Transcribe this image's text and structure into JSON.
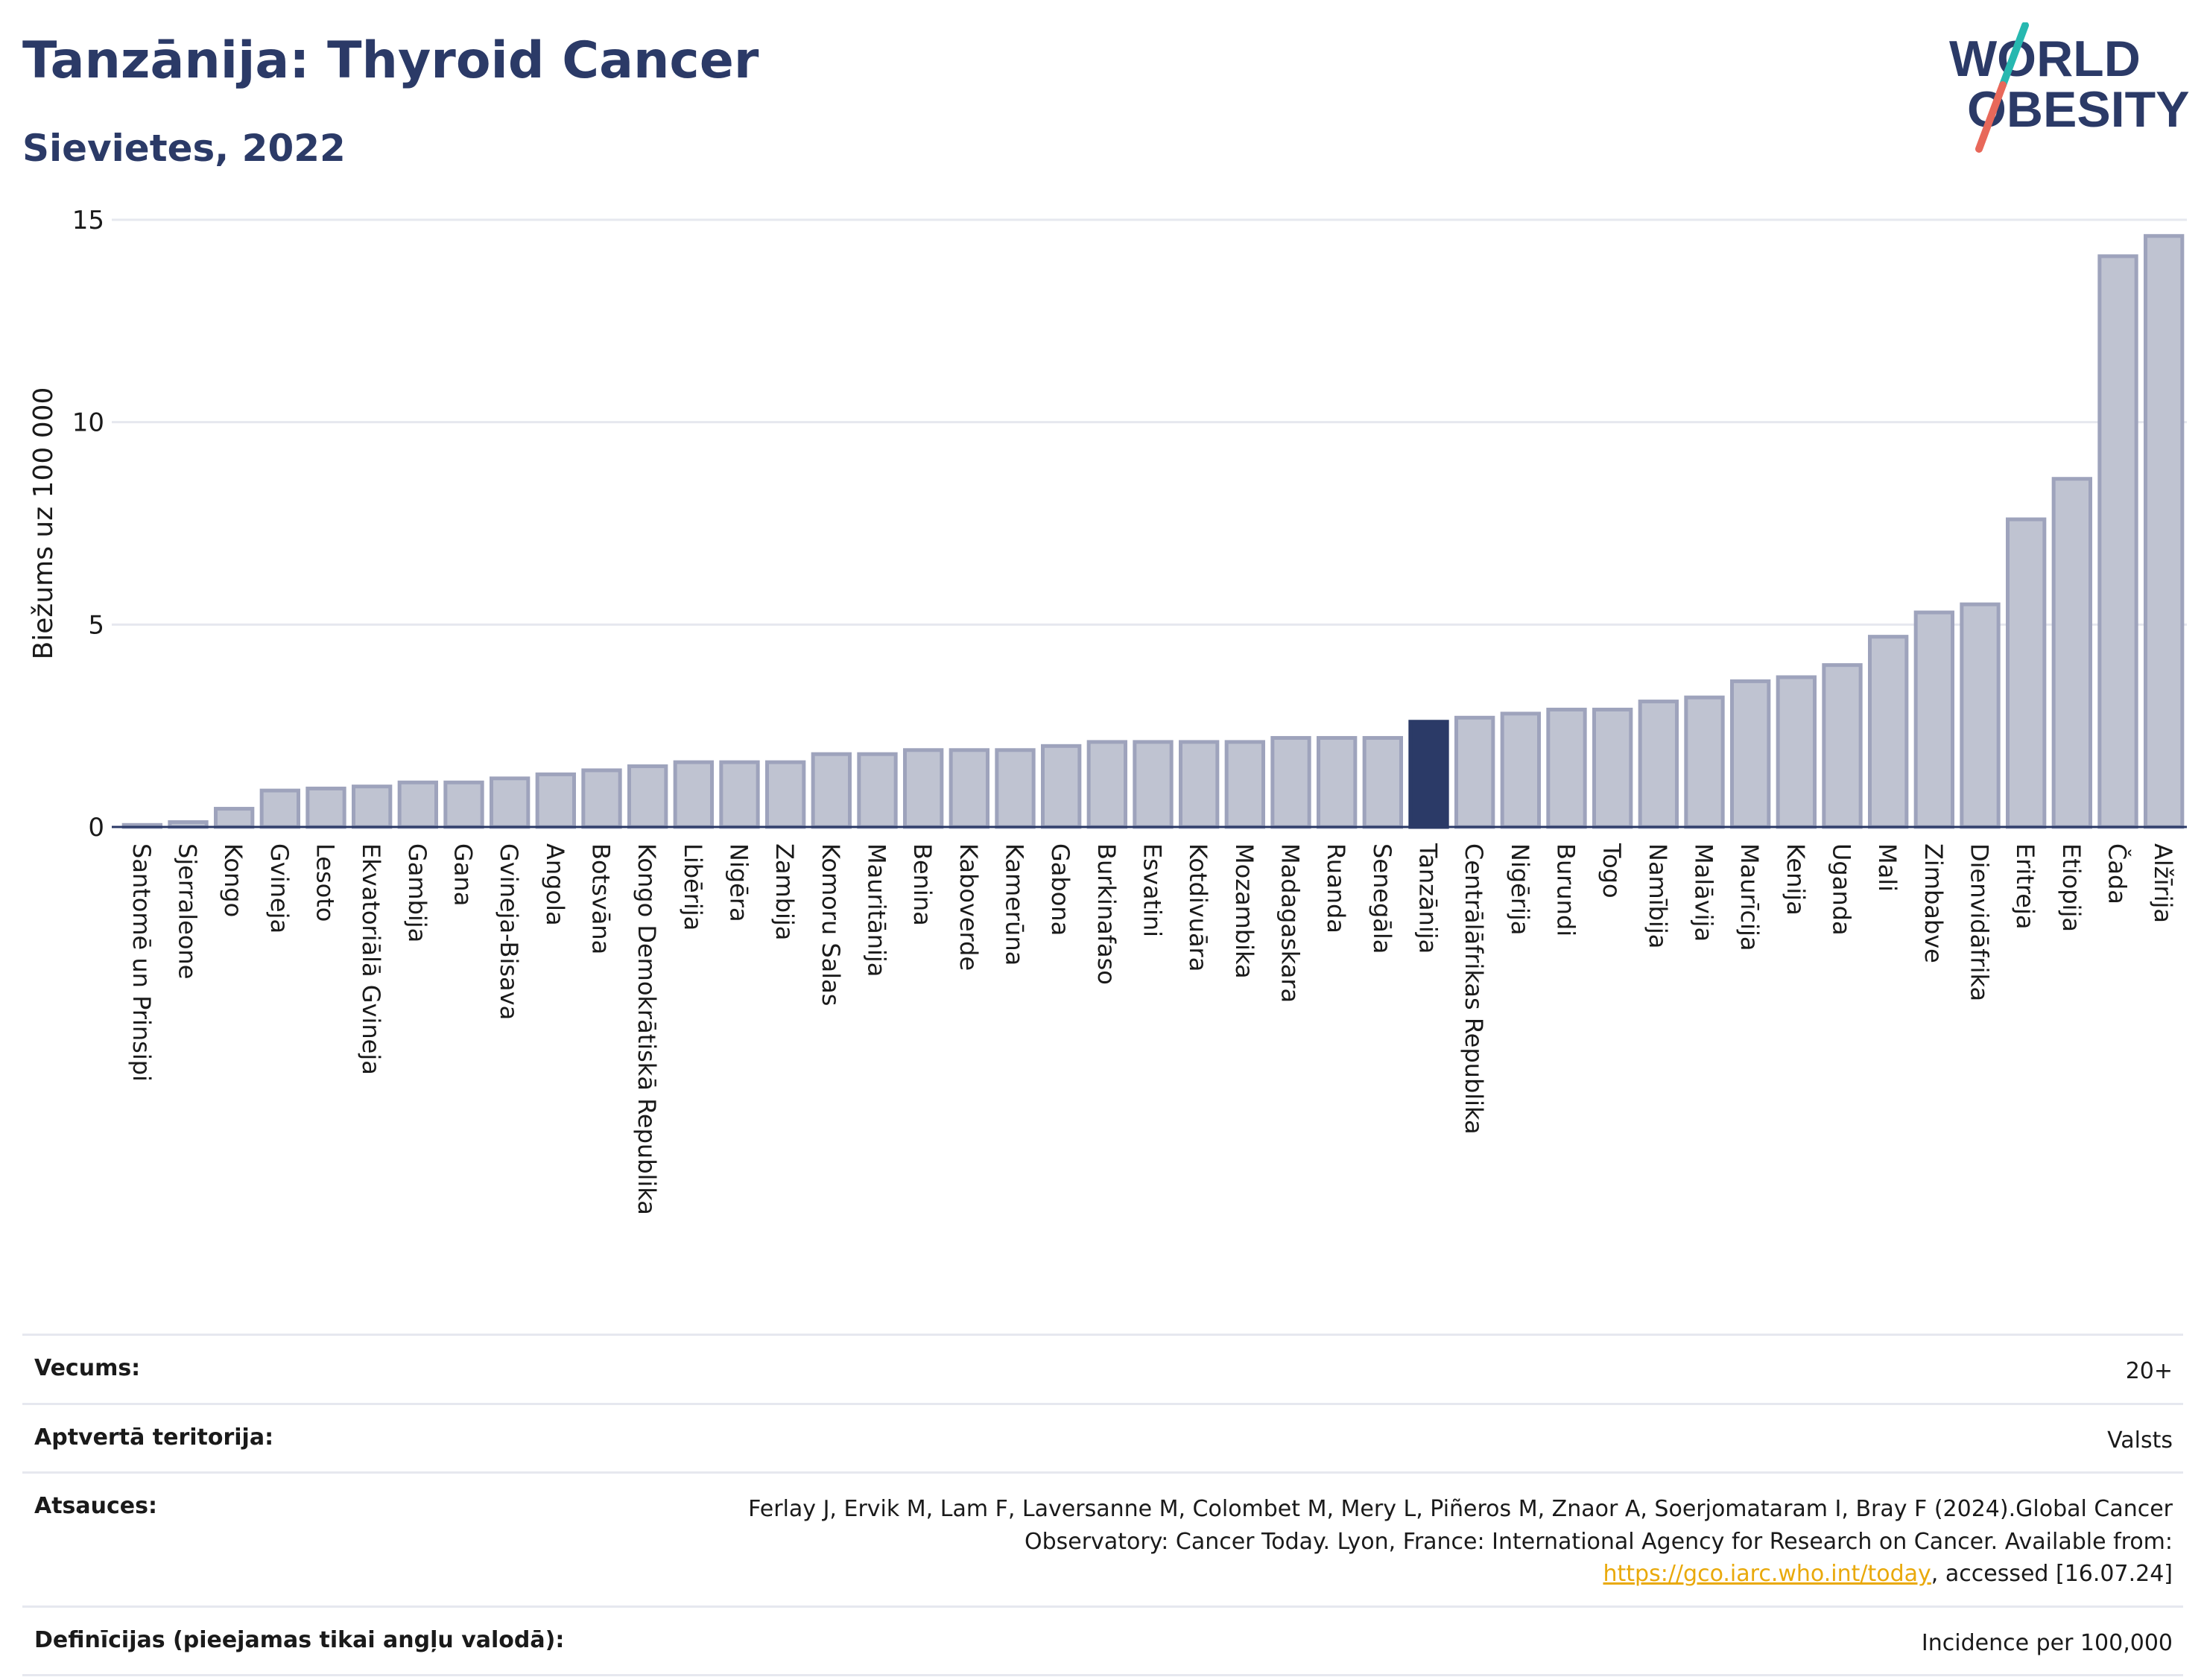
{
  "title": "Tanzānija: Thyroid Cancer",
  "subtitle": "Sievietes, 2022",
  "logo": {
    "line1": "WORLD",
    "line2": "OBESITY"
  },
  "info": {
    "age_label": "Vecums:",
    "age_value": "20+",
    "coverage_label": "Aptvertā teritorija:",
    "coverage_value": "Valsts",
    "refs_label": "Atsauces:",
    "refs_text_1": "Ferlay J, Ervik M, Lam F, Laversanne M, Colombet M, Mery L, Piñeros M, Znaor A, Soerjomataram I, Bray F (2024).Global Cancer Observatory: Cancer Today. Lyon, France: International Agency for Research on Cancer. Available from: ",
    "refs_link": "https://gco.iarc.who.int/today",
    "refs_text_2": ", accessed [16.07.24]",
    "defs_label": "Definīcijas (pieejamas tikai angļu valodā):",
    "defs_value": "Incidence per 100,000"
  },
  "chart_data": {
    "type": "bar",
    "ylabel": "Biežums uz 100 000",
    "ylim": [
      0,
      15
    ],
    "yticks": [
      0,
      5,
      10,
      15
    ],
    "grid": true,
    "highlight": "Tanzānija",
    "colors": {
      "bar": "#bfc3d1",
      "bar_edge": "#9ea3bc",
      "highlight": "#2b3a67",
      "grid": "#e6e8ef",
      "axis": "#2b3a67"
    },
    "categories": [
      "Santomē un Prinsipi",
      "Sjerraleone",
      "Kongo",
      "Gvineja",
      "Lesoto",
      "Ekvatoriālā Gvineja",
      "Gambija",
      "Gana",
      "Gvineja-Bisava",
      "Angola",
      "Botsvāna",
      "Kongo Demokrātiskā Republika",
      "Libērija",
      "Nigēra",
      "Zambija",
      "Komoru Salas",
      "Mauritānija",
      "Benina",
      "Kaboverde",
      "Kamerūna",
      "Gabona",
      "Burkinafaso",
      "Esvatini",
      "Kotdivuāra",
      "Mozambika",
      "Madagaskara",
      "Ruanda",
      "Senegāla",
      "Tanzānija",
      "Centrālāfrikas Republika",
      "Nigērija",
      "Burundi",
      "Togo",
      "Namībija",
      "Malāvija",
      "Maurīcija",
      "Kenija",
      "Uganda",
      "Mali",
      "Zimbabve",
      "Dienvidāfrika",
      "Eritreja",
      "Etiopija",
      "Čada",
      "Alžīrija"
    ],
    "values": [
      0.05,
      0.12,
      0.45,
      0.9,
      0.95,
      1.0,
      1.1,
      1.1,
      1.2,
      1.3,
      1.4,
      1.5,
      1.6,
      1.6,
      1.6,
      1.8,
      1.8,
      1.9,
      1.9,
      1.9,
      2.0,
      2.1,
      2.1,
      2.1,
      2.1,
      2.2,
      2.2,
      2.2,
      2.6,
      2.7,
      2.8,
      2.9,
      2.9,
      3.1,
      3.2,
      3.6,
      3.7,
      4.0,
      4.7,
      5.3,
      5.5,
      7.6,
      8.6,
      14.1,
      14.6
    ]
  }
}
